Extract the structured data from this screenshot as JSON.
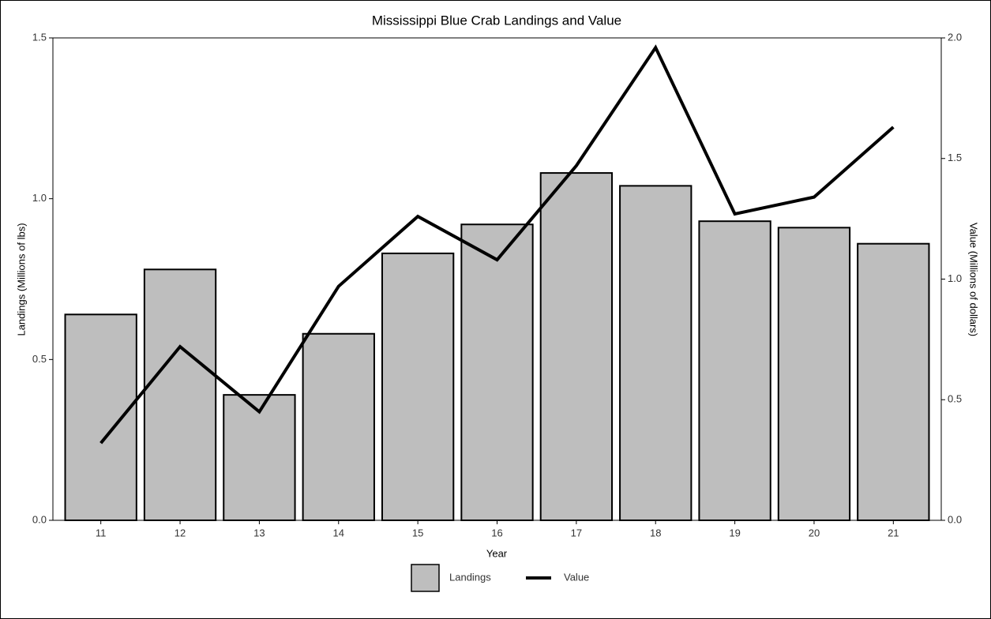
{
  "chart_data": {
    "type": "bar_line",
    "title": "Mississippi Blue Crab Landings and Value",
    "x_label": "Year",
    "y_label": "Landings (Millions of lbs)",
    "y2_label": "Value (Millions of dollars)",
    "categories": [
      "11",
      "12",
      "13",
      "14",
      "15",
      "16",
      "17",
      "18",
      "19",
      "20",
      "21"
    ],
    "series": [
      {
        "name": "Landings",
        "type": "bar",
        "color": "#bebebe",
        "values": [
          0.64,
          0.78,
          0.39,
          0.58,
          0.83,
          0.92,
          1.08,
          1.04,
          0.93,
          0.91,
          0.86
        ]
      },
      {
        "name": "Value",
        "type": "line",
        "axis": "y2",
        "color": "#000000",
        "values": [
          0.32,
          0.72,
          0.45,
          0.97,
          1.26,
          1.08,
          1.47,
          1.96,
          1.27,
          1.34,
          1.63
        ]
      }
    ],
    "ylim": [
      0,
      1.5
    ],
    "yticks": [
      {
        "value": 0,
        "label": "0.0"
      },
      {
        "value": 0.5,
        "label": "0.5"
      },
      {
        "value": 1,
        "label": "1.0"
      },
      {
        "value": 1.5,
        "label": "1.5"
      }
    ],
    "y2lim": [
      0,
      2
    ],
    "y2ticks": [
      {
        "value": 0,
        "label": "0.0"
      },
      {
        "value": 0.5,
        "label": "0.5"
      },
      {
        "value": 1,
        "label": "1.0"
      },
      {
        "value": 1.5,
        "label": "1.5"
      },
      {
        "value": 2,
        "label": "2.0"
      }
    ],
    "legend": "bottom"
  }
}
